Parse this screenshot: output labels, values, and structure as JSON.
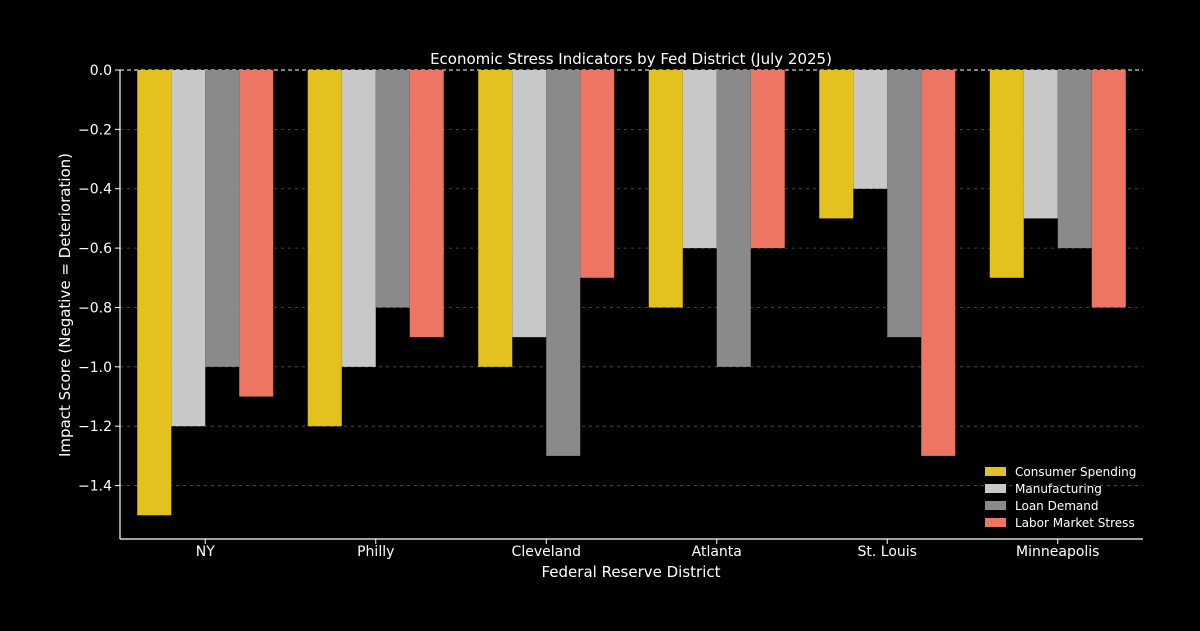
{
  "chart_data": {
    "type": "bar",
    "title": "Economic Stress Indicators by Fed District (July 2025)",
    "xlabel": "Federal Reserve District",
    "ylabel": "Impact Score (Negative = Deterioration)",
    "categories": [
      "NY",
      "Philly",
      "Cleveland",
      "Atlanta",
      "St. Louis",
      "Minneapolis"
    ],
    "series": [
      {
        "name": "Consumer Spending",
        "color": "#e3c21f",
        "values": [
          -1.5,
          -1.2,
          -1.0,
          -0.8,
          -0.5,
          -0.7
        ]
      },
      {
        "name": "Manufacturing",
        "color": "#c8c8c8",
        "values": [
          -1.2,
          -1.0,
          -0.9,
          -0.6,
          -0.4,
          -0.5
        ]
      },
      {
        "name": "Loan Demand",
        "color": "#8a8a8a",
        "values": [
          -1.0,
          -0.8,
          -1.3,
          -1.0,
          -0.9,
          -0.6
        ]
      },
      {
        "name": "Labor Market Stress",
        "color": "#ec7563",
        "values": [
          -1.1,
          -0.9,
          -0.7,
          -0.6,
          -1.3,
          -0.8
        ]
      }
    ],
    "ylim": [
      -1.58,
      0.0
    ],
    "yticks": [
      0.0,
      -0.2,
      -0.4,
      -0.6,
      -0.8,
      -1.0,
      -1.2,
      -1.4
    ],
    "ytick_labels": [
      "0.0",
      "−0.2",
      "−0.4",
      "−0.6",
      "−0.8",
      "−1.0",
      "−1.2",
      "−1.4"
    ],
    "grid": true,
    "zero_line": "dashed",
    "legend_position": "lower-right"
  }
}
